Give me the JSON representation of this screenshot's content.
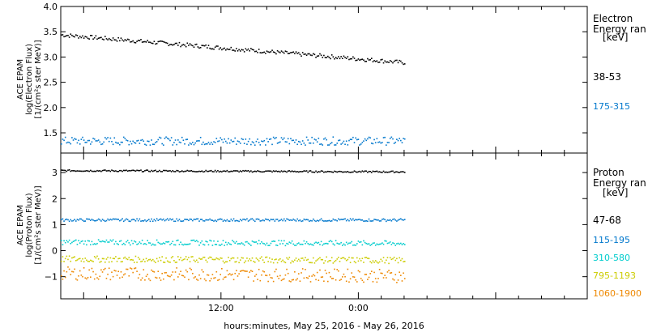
{
  "chart_data": [
    {
      "type": "scatter",
      "ylabel_lines": [
        "ACE EPAM",
        "log(Electron Flux)",
        "[1/(cm²s ster MeV)]"
      ],
      "ylim": [
        1.1,
        4.0
      ],
      "yticks": [
        "1.5",
        "2.0",
        "2.5",
        "3.0",
        "3.5",
        "4.0"
      ],
      "ytick_values": [
        1.5,
        2.0,
        2.5,
        3.0,
        3.5,
        4.0
      ],
      "legend_title_lines": [
        "Electron",
        "Energy ran",
        "[keV]"
      ],
      "series": [
        {
          "name": "38-53",
          "color": "#000000",
          "y_start": 3.45,
          "y_end": 2.9,
          "jitter": 0.04
        },
        {
          "name": "175-315",
          "color": "#0077cc",
          "y_start": 1.35,
          "y_end": 1.35,
          "jitter": 0.08
        }
      ]
    },
    {
      "type": "scatter",
      "ylabel_lines": [
        "ACE EPAM",
        "log(Proton Flux)",
        "[1/(cm²s ster MeV)]"
      ],
      "ylim": [
        -1.85,
        3.75
      ],
      "yticks": [
        "−1",
        "0",
        "1",
        "2",
        "3"
      ],
      "ytick_values": [
        -1,
        0,
        1,
        2,
        3
      ],
      "legend_title_lines": [
        "Proton",
        "Energy ran",
        "[keV]"
      ],
      "series": [
        {
          "name": "47-68",
          "color": "#000000",
          "y_start": 3.1,
          "y_end": 3.05,
          "jitter": 0.03
        },
        {
          "name": "115-195",
          "color": "#0077cc",
          "y_start": 1.2,
          "y_end": 1.2,
          "jitter": 0.05
        },
        {
          "name": "310-580",
          "color": "#00cccc",
          "y_start": 0.35,
          "y_end": 0.3,
          "jitter": 0.1
        },
        {
          "name": "795-1193",
          "color": "#cccc00",
          "y_start": -0.3,
          "y_end": -0.35,
          "jitter": 0.12
        },
        {
          "name": "1060-1900",
          "color": "#ee8800",
          "y_start": -0.85,
          "y_end": -0.95,
          "jitter": 0.25
        }
      ]
    }
  ],
  "x_axis": {
    "label": "hours:minutes, May 25, 2016 - May 26, 2016",
    "ticks": [
      {
        "label": "12:00",
        "hours": 12
      },
      {
        "label": "0:00",
        "hours": 24
      }
    ],
    "xlim_hours": [
      -2,
      44
    ],
    "data_end_hours": 28
  }
}
